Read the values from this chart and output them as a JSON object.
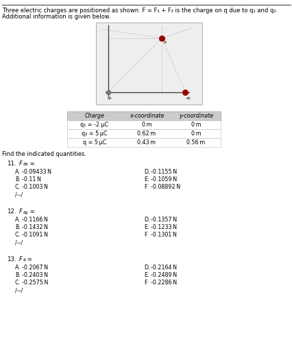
{
  "header_line1": "Three electric charges are positioned as shown. F = F₁ + F₂ is the charge on q due to q₁ and q₂.",
  "header_line2": "Additional information is given below.",
  "table_headers": [
    "Charge",
    "x-coordinate",
    "y-coordinate"
  ],
  "table_rows": [
    [
      "q₁ = -2 μC",
      "0 m",
      "0 m"
    ],
    [
      "q₂ = 5 μC",
      "0.62 m",
      "0 m"
    ],
    [
      "q = 5 μC",
      "0.43 m",
      "0.56 m"
    ]
  ],
  "find_text": "Find the indicated quantities.",
  "questions": [
    {
      "number": "11.",
      "label_parts": [
        "F",
        "ax",
        " ="
      ],
      "choices_left": [
        [
          "A.",
          "-0.09433 N"
        ],
        [
          "B.",
          "-0.11 N"
        ],
        [
          "C.",
          "-0.1003 N"
        ]
      ],
      "choices_right": [
        [
          "D.",
          "-0.1155 N"
        ],
        [
          "E.",
          "-0.1059 N"
        ],
        [
          "F.",
          "-0.08892 N"
        ]
      ]
    },
    {
      "number": "12.",
      "label_parts": [
        "F",
        "ay",
        " ="
      ],
      "choices_left": [
        [
          "A.",
          "-0.1166 N"
        ],
        [
          "B.",
          "-0.1432 N"
        ],
        [
          "C.",
          "-0.1091 N"
        ]
      ],
      "choices_right": [
        [
          "D.",
          "-0.1357 N"
        ],
        [
          "E.",
          "-0.1233 N"
        ],
        [
          "F.",
          "-0.1301 N"
        ]
      ]
    },
    {
      "number": "13.",
      "label_parts": [
        "F",
        "a",
        " ="
      ],
      "choices_left": [
        [
          "A.",
          "-0.2067 N"
        ],
        [
          "B.",
          "-0.2403 N"
        ],
        [
          "C.",
          "-0.2575 N"
        ]
      ],
      "choices_right": [
        [
          "D.",
          "-0.2164 N"
        ],
        [
          "E.",
          "-0.2489 N"
        ],
        [
          "F.",
          "-0.2286 N"
        ]
      ]
    }
  ],
  "diagram": {
    "bg_color": "#eeeeee",
    "charge_color_red": "#990000",
    "charge_color_gray": "#777777",
    "line_color": "#444444",
    "dotted_color": "#bbbbbb"
  },
  "bg_white": "#ffffff",
  "text_color": "#000000",
  "table_header_bg": "#cccccc",
  "separator_color": "#555555"
}
